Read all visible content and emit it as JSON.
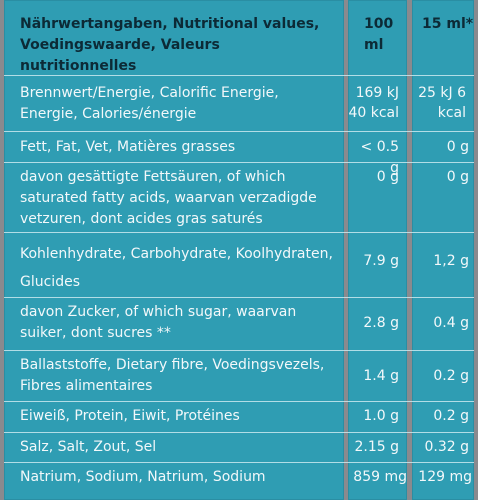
{
  "header": {
    "label": "Nährwertangaben, Nutritional values, Voedingswaarde, Valeurs nutritionnelles",
    "col1": "100 ml",
    "col2": "15 ml*"
  },
  "rows": [
    {
      "label": "Brennwert/Energie, Calorific Energie, Energie, Calories/énergie",
      "v1": "169 kJ 40 kcal",
      "v2": "25 kJ 6 kcal"
    },
    {
      "label": "Fett, Fat, Vet, Matières grasses",
      "v1": "< 0.5 g",
      "v2": "0 g"
    },
    {
      "label": "davon gesättigte Fettsäuren, of which saturated fatty acids, waarvan verzadigde vetzuren, dont acides gras saturés",
      "v1": "0 g",
      "v2": "0 g"
    },
    {
      "label": "Kohlenhydrate, Carbohydrate, Koolhydraten, Glucides",
      "v1": "7.9 g",
      "v2": "1,2 g"
    },
    {
      "label": "davon Zucker, of which sugar, waarvan suiker, dont sucres **",
      "v1": "2.8 g",
      "v2": "0.4 g"
    },
    {
      "label": "Ballaststoffe, Dietary fibre, Voedingsvezels, Fibres alimentaires",
      "v1": "1.4 g",
      "v2": "0.2 g"
    },
    {
      "label": "Eiweiß, Protein, Eiwit, Protéines",
      "v1": "1.0 g",
      "v2": "0.2 g"
    },
    {
      "label": "Salz, Salt, Zout, Sel",
      "v1": "2.15 g",
      "v2": "0.32 g"
    },
    {
      "label": "Natrium, Sodium, Natrium, Sodium",
      "v1": "859 mg",
      "v2": "129 mg"
    }
  ],
  "colors": {
    "panel": "#2f9db3",
    "background": "#8a8a8e",
    "header_text": "#0c2a36",
    "text": "#f2f8fa"
  }
}
